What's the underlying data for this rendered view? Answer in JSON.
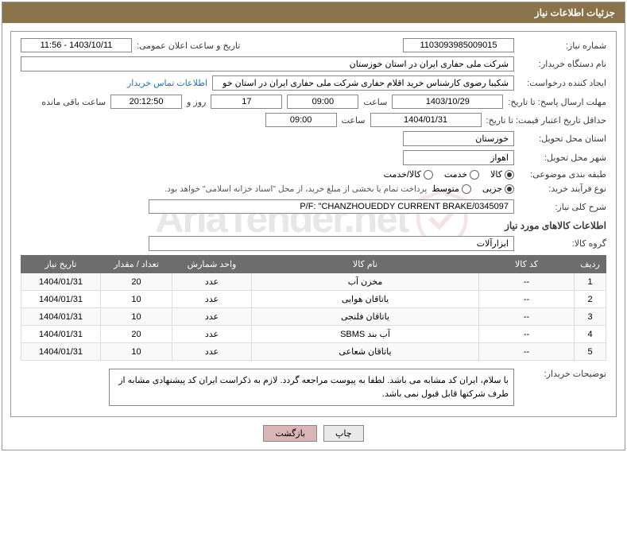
{
  "header": {
    "title": "جزئیات اطلاعات نیاز"
  },
  "watermark": {
    "text": "AriaTender.net"
  },
  "fields": {
    "need_number_label": "شماره نیاز:",
    "need_number": "1103093985009015",
    "announce_label": "تاریخ و ساعت اعلان عمومی:",
    "announce_value": "1403/10/11 - 11:56",
    "buyer_org_label": "نام دستگاه خریدار:",
    "buyer_org": "شرکت ملی حفاری ایران در استان خوزستان",
    "requester_label": "ایجاد کننده درخواست:",
    "requester": "شکیبا رضوی کارشناس خرید اقلام حفاری شرکت ملی حفاری ایران در استان خو",
    "buyer_contact_link": "اطلاعات تماس خریدار",
    "reply_deadline_label": "مهلت ارسال پاسخ: تا تاریخ:",
    "reply_deadline_date": "1403/10/29",
    "time_label": "ساعت",
    "reply_deadline_time": "09:00",
    "days_value": "17",
    "days_and": "روز و",
    "countdown": "20:12:50",
    "remain_label": "ساعت باقی مانده",
    "price_validity_label": "حداقل تاریخ اعتبار قیمت: تا تاریخ:",
    "price_validity_date": "1404/01/31",
    "price_validity_time": "09:00",
    "delivery_province_label": "استان محل تحویل:",
    "delivery_province": "خوزستان",
    "delivery_city_label": "شهر محل تحویل:",
    "delivery_city": "اهواز",
    "category_label": "طبقه بندی موضوعی:",
    "cat_goods": "کالا",
    "cat_service": "خدمت",
    "cat_goods_service": "کالا/خدمت",
    "purchase_type_label": "نوع فرآیند خرید:",
    "pt_minor": "جزیی",
    "pt_medium": "متوسط",
    "purchase_note": "پرداخت تمام یا بخشی از مبلغ خرید، از محل \"اسناد خزانه اسلامی\" خواهد بود.",
    "desc_label": "شرح کلی نیاز:",
    "desc_value": "P/F: \"CHANZHOUEDDY CURRENT BRAKE/0345097",
    "goods_section": "اطلاعات کالاهای مورد نیاز",
    "goods_group_label": "گروه کالا:",
    "goods_group": "ابزارآلات",
    "buyer_notes_label": "توضیحات خریدار:",
    "buyer_notes": "با سلام، ایران کد مشابه می باشد. لطفا به پیوست مراجعه گردد. لازم به ذکراست ایران کد پیشنهادی مشابه از طرف شرکتها قابل قبول نمی باشد."
  },
  "table": {
    "headers": {
      "row": "ردیف",
      "code": "کد کالا",
      "name": "نام کالا",
      "unit": "واحد شمارش",
      "qty": "تعداد / مقدار",
      "date": "تاریخ نیاز"
    },
    "rows": [
      {
        "n": "1",
        "code": "--",
        "name": "مخزن آب",
        "unit": "عدد",
        "qty": "20",
        "date": "1404/01/31"
      },
      {
        "n": "2",
        "code": "--",
        "name": "یاتاقان هوایی",
        "unit": "عدد",
        "qty": "10",
        "date": "1404/01/31"
      },
      {
        "n": "3",
        "code": "--",
        "name": "یاتاقان فلنجی",
        "unit": "عدد",
        "qty": "10",
        "date": "1404/01/31"
      },
      {
        "n": "4",
        "code": "--",
        "name": "آب بند SBMS",
        "unit": "عدد",
        "qty": "20",
        "date": "1404/01/31"
      },
      {
        "n": "5",
        "code": "--",
        "name": "یاتاقان شعاعی",
        "unit": "عدد",
        "qty": "10",
        "date": "1404/01/31"
      }
    ]
  },
  "buttons": {
    "print": "چاپ",
    "back": "بازگشت"
  },
  "colors": {
    "header_bg": "#8a7349",
    "th_bg": "#6d6d6d",
    "link": "#2173c4"
  }
}
